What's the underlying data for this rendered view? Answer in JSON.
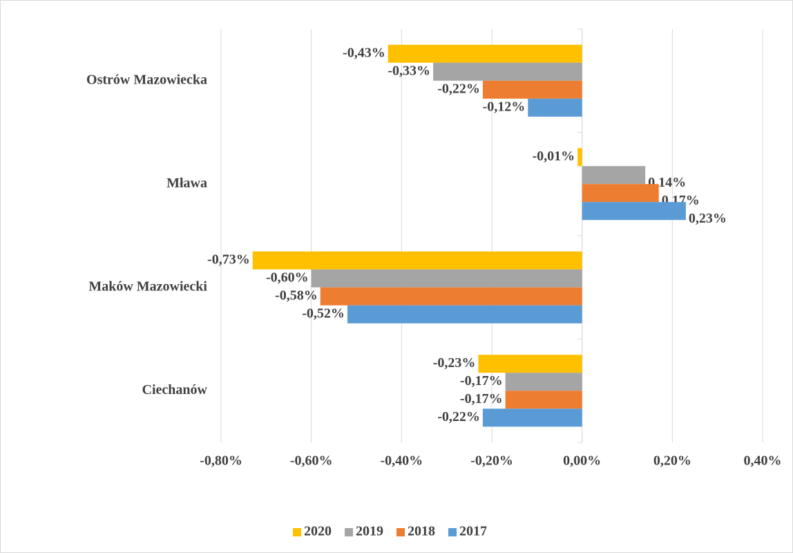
{
  "chart_data": {
    "type": "hbar",
    "categories": [
      "Ostrów Mazowiecka",
      "Mława",
      "Maków Mazowiecki",
      "Ciechanów"
    ],
    "series": [
      {
        "name": "2020",
        "color": "#ffc000",
        "values": [
          -0.43,
          -0.01,
          -0.73,
          -0.23
        ],
        "value_labels": [
          "-0,43%",
          "-0,01%",
          "-0,73%",
          "-0,23%"
        ]
      },
      {
        "name": "2019",
        "color": "#a5a5a5",
        "values": [
          -0.33,
          0.14,
          -0.6,
          -0.17
        ],
        "value_labels": [
          "-0,33%",
          "0,14%",
          "-0,60%",
          "-0,17%"
        ]
      },
      {
        "name": "2018",
        "color": "#ed7d31",
        "values": [
          -0.22,
          0.17,
          -0.58,
          -0.17
        ],
        "value_labels": [
          "-0,22%",
          "0,17%",
          "-0,58%",
          "-0,17%"
        ]
      },
      {
        "name": "2017",
        "color": "#5b9bd5",
        "values": [
          -0.12,
          0.23,
          -0.52,
          -0.22
        ],
        "value_labels": [
          "-0,12%",
          "0,23%",
          "-0,52%",
          "-0,22%"
        ]
      }
    ],
    "xlim": [
      -0.8,
      0.4
    ],
    "xticks": [
      {
        "value": -0.8,
        "label": "-0,80%"
      },
      {
        "value": -0.6,
        "label": "-0,60%"
      },
      {
        "value": -0.4,
        "label": "-0,40%"
      },
      {
        "value": -0.2,
        "label": "-0,20%"
      },
      {
        "value": 0,
        "label": "0,00%"
      },
      {
        "value": 0.2,
        "label": "0,20%"
      },
      {
        "value": 0.4,
        "label": "0,40%"
      }
    ],
    "grid": true,
    "legend": "bottom"
  }
}
